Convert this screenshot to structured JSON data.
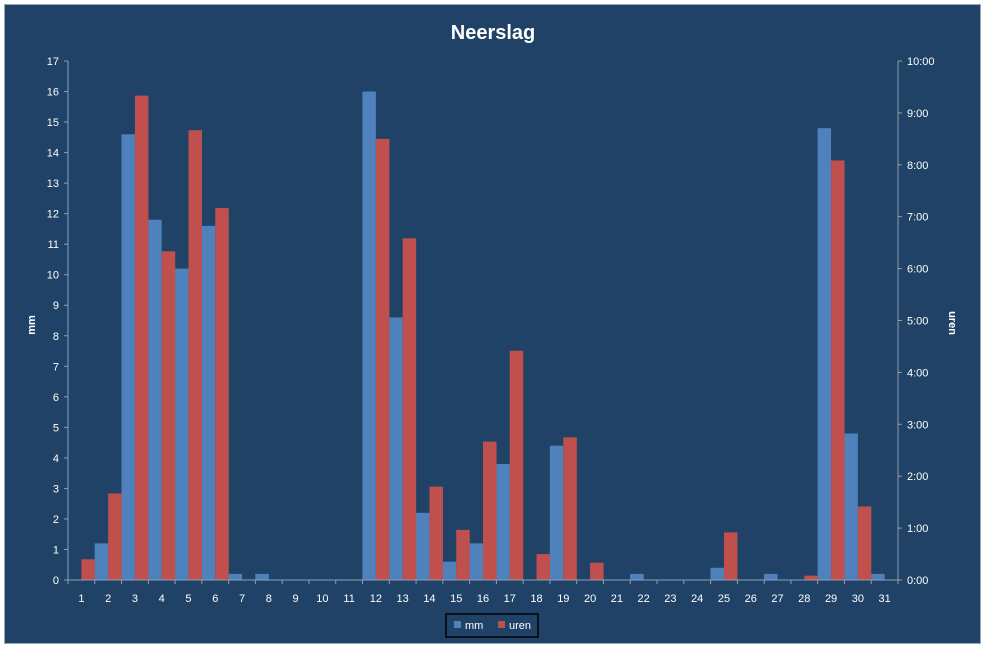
{
  "chart_data": {
    "type": "bar",
    "title": "Neerslag",
    "xlabel": "",
    "ylabel": "mm",
    "y2label": "uren",
    "ylim": [
      0,
      17
    ],
    "y2lim_minutes": [
      0,
      600
    ],
    "y_ticks": [
      "0",
      "1",
      "2",
      "3",
      "4",
      "5",
      "6",
      "7",
      "8",
      "9",
      "10",
      "11",
      "12",
      "13",
      "14",
      "15",
      "16",
      "17"
    ],
    "y2_ticks": [
      "0:00",
      "1:00",
      "2:00",
      "3:00",
      "4:00",
      "5:00",
      "6:00",
      "7:00",
      "8:00",
      "9:00",
      "10:00"
    ],
    "categories": [
      "1",
      "2",
      "3",
      "4",
      "5",
      "6",
      "7",
      "8",
      "9",
      "10",
      "11",
      "12",
      "13",
      "14",
      "15",
      "16",
      "17",
      "18",
      "19",
      "20",
      "21",
      "22",
      "23",
      "24",
      "25",
      "26",
      "27",
      "28",
      "29",
      "30",
      "31"
    ],
    "series": [
      {
        "name": "mm",
        "axis": "left",
        "color": "#4f81bd",
        "values": [
          0,
          1.2,
          14.6,
          11.8,
          10.2,
          11.6,
          0.2,
          0.2,
          0,
          0,
          0,
          16.0,
          8.6,
          2.2,
          0.6,
          1.2,
          3.8,
          0,
          4.4,
          0,
          0,
          0.2,
          0,
          0,
          0.4,
          0,
          0.2,
          0,
          14.8,
          4.8,
          0.2
        ]
      },
      {
        "name": "uren",
        "axis": "right",
        "unit": "minutes",
        "color": "#c0504d",
        "values": [
          24,
          100,
          560,
          380,
          520,
          430,
          0,
          0,
          0,
          0,
          0,
          510,
          395,
          108,
          58,
          160,
          265,
          30,
          165,
          20,
          0,
          0,
          0,
          0,
          55,
          0,
          0,
          5,
          485,
          85,
          0
        ]
      }
    ],
    "legend": {
      "position": "bottom",
      "entries": [
        "mm",
        "uren"
      ]
    },
    "grid": false
  }
}
